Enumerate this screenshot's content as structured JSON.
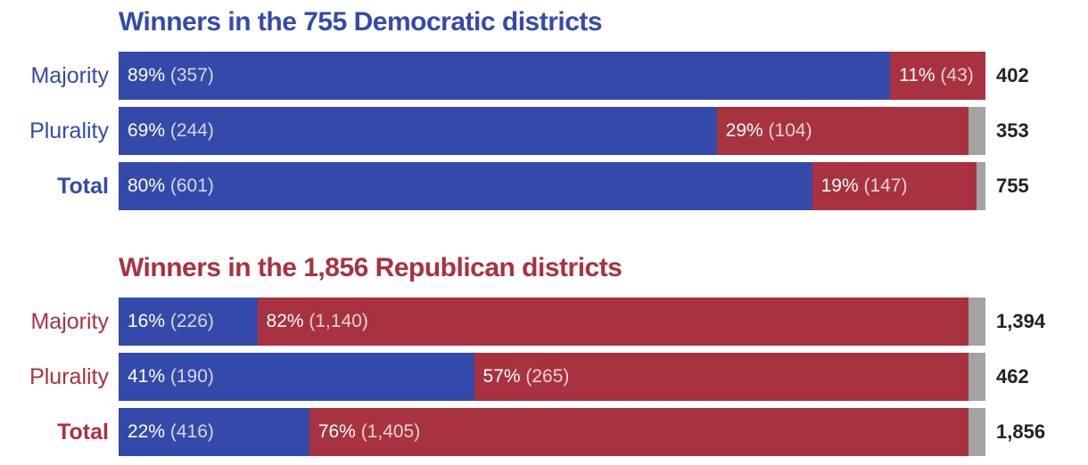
{
  "colors": {
    "democratic": "#344aab",
    "republican": "#a83240",
    "other": "#a3a3a3"
  },
  "chart_data": [
    {
      "type": "bar",
      "orientation": "horizontal",
      "stacked": true,
      "title": "Winners in the 755 Democratic districts",
      "title_color": "#344aab",
      "categories": [
        "Majority",
        "Plurality",
        "Total"
      ],
      "series": [
        {
          "party": "democratic",
          "percent": [
            89,
            69,
            80
          ],
          "counts": [
            357,
            244,
            601
          ],
          "labels": [
            "89%",
            "69%",
            "80%"
          ],
          "count_labels": [
            "(357)",
            "(244)",
            "(601)"
          ]
        },
        {
          "party": "republican",
          "percent": [
            11,
            29,
            19
          ],
          "counts": [
            43,
            104,
            147
          ],
          "labels": [
            "11%",
            "29%",
            "19%"
          ],
          "count_labels": [
            "(43)",
            "(104)",
            "(147)"
          ]
        }
      ],
      "totals": [
        402,
        353,
        755
      ],
      "total_labels": [
        "402",
        "353",
        "755"
      ]
    },
    {
      "type": "bar",
      "orientation": "horizontal",
      "stacked": true,
      "title": "Winners in the 1,856 Republican districts",
      "title_color": "#a83240",
      "categories": [
        "Majority",
        "Plurality",
        "Total"
      ],
      "series": [
        {
          "party": "democratic",
          "percent": [
            16,
            41,
            22
          ],
          "counts": [
            226,
            190,
            416
          ],
          "labels": [
            "16%",
            "41%",
            "22%"
          ],
          "count_labels": [
            "(226)",
            "(190)",
            "(416)"
          ]
        },
        {
          "party": "republican",
          "percent": [
            82,
            57,
            76
          ],
          "counts": [
            1140,
            265,
            1405
          ],
          "labels": [
            "82%",
            "57%",
            "76%"
          ],
          "count_labels": [
            "(1,140)",
            "(265)",
            "(1,405)"
          ]
        }
      ],
      "totals": [
        1394,
        462,
        1856
      ],
      "total_labels": [
        "1,394",
        "462",
        "1,856"
      ]
    }
  ]
}
